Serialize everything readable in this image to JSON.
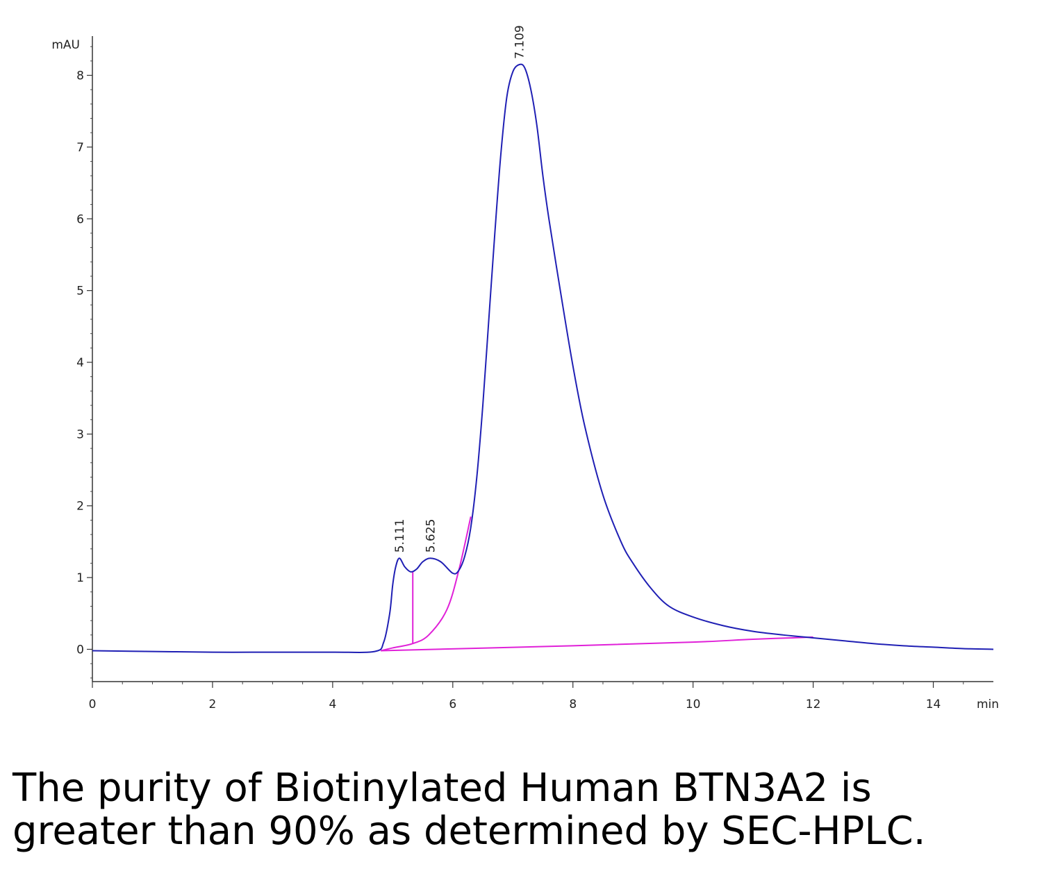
{
  "chart_data": {
    "type": "line",
    "x_unit": "min",
    "y_unit": "mAU",
    "xlim": [
      0,
      15
    ],
    "ylim": [
      -0.45,
      8.45
    ],
    "x_ticks": [
      0,
      2,
      4,
      6,
      8,
      10,
      12,
      14
    ],
    "y_ticks": [
      0,
      1,
      2,
      3,
      4,
      5,
      6,
      7,
      8
    ],
    "x_tick_labels": [
      "0",
      "2",
      "4",
      "6",
      "8",
      "10",
      "12",
      "14"
    ],
    "y_tick_labels": [
      "0",
      "1",
      "2",
      "3",
      "4",
      "5",
      "6",
      "7",
      "8"
    ],
    "grid": false,
    "series": [
      {
        "color": "#1f1fb4",
        "x": [
          0,
          1,
          2,
          3,
          4,
          4.7,
          4.85,
          4.95,
          5.0,
          5.05,
          5.111,
          5.2,
          5.3,
          5.4,
          5.5,
          5.625,
          5.8,
          6.0,
          6.1,
          6.2,
          6.3,
          6.4,
          6.5,
          6.6,
          6.7,
          6.8,
          6.9,
          7.0,
          7.109,
          7.2,
          7.3,
          7.4,
          7.5,
          7.6,
          7.8,
          8.0,
          8.2,
          8.5,
          8.8,
          9.0,
          9.3,
          9.6,
          10.0,
          10.5,
          11.0,
          11.5,
          12.0,
          12.5,
          13.0,
          13.5,
          14.0,
          14.5,
          15.0
        ],
        "y": [
          -0.02,
          -0.03,
          -0.04,
          -0.04,
          -0.04,
          -0.03,
          0.1,
          0.5,
          0.9,
          1.15,
          1.27,
          1.15,
          1.08,
          1.12,
          1.22,
          1.27,
          1.22,
          1.06,
          1.1,
          1.3,
          1.7,
          2.4,
          3.4,
          4.6,
          5.8,
          6.9,
          7.7,
          8.05,
          8.15,
          8.1,
          7.8,
          7.3,
          6.6,
          6.0,
          4.95,
          3.95,
          3.1,
          2.15,
          1.5,
          1.2,
          0.85,
          0.6,
          0.45,
          0.33,
          0.25,
          0.2,
          0.16,
          0.12,
          0.08,
          0.05,
          0.03,
          0.01,
          0.0
        ]
      }
    ],
    "baselines": [
      {
        "color": "#e020d8",
        "x": [
          4.8,
          5.0,
          5.334,
          5.6,
          5.9,
          6.1,
          6.3
        ],
        "y": [
          -0.02,
          0.02,
          0.08,
          0.2,
          0.55,
          1.1,
          1.85
        ]
      },
      {
        "color": "#e020d8",
        "x": [
          4.8,
          8.0,
          10.0,
          11.0,
          12.0
        ],
        "y": [
          -0.02,
          0.05,
          0.1,
          0.14,
          0.17
        ]
      },
      {
        "color": "#e020d8",
        "x": [
          5.334,
          5.334
        ],
        "y": [
          0.08,
          1.08
        ]
      }
    ],
    "peak_labels": [
      {
        "x": 5.111,
        "y": 1.27,
        "text": "5.111"
      },
      {
        "x": 5.625,
        "y": 1.27,
        "text": "5.625"
      },
      {
        "x": 7.109,
        "y": 8.15,
        "text": "7.109"
      }
    ]
  },
  "caption": {
    "line1": "The purity of Biotinylated Human BTN3A2 is",
    "line2": "greater than 90% as determined by SEC-HPLC."
  }
}
